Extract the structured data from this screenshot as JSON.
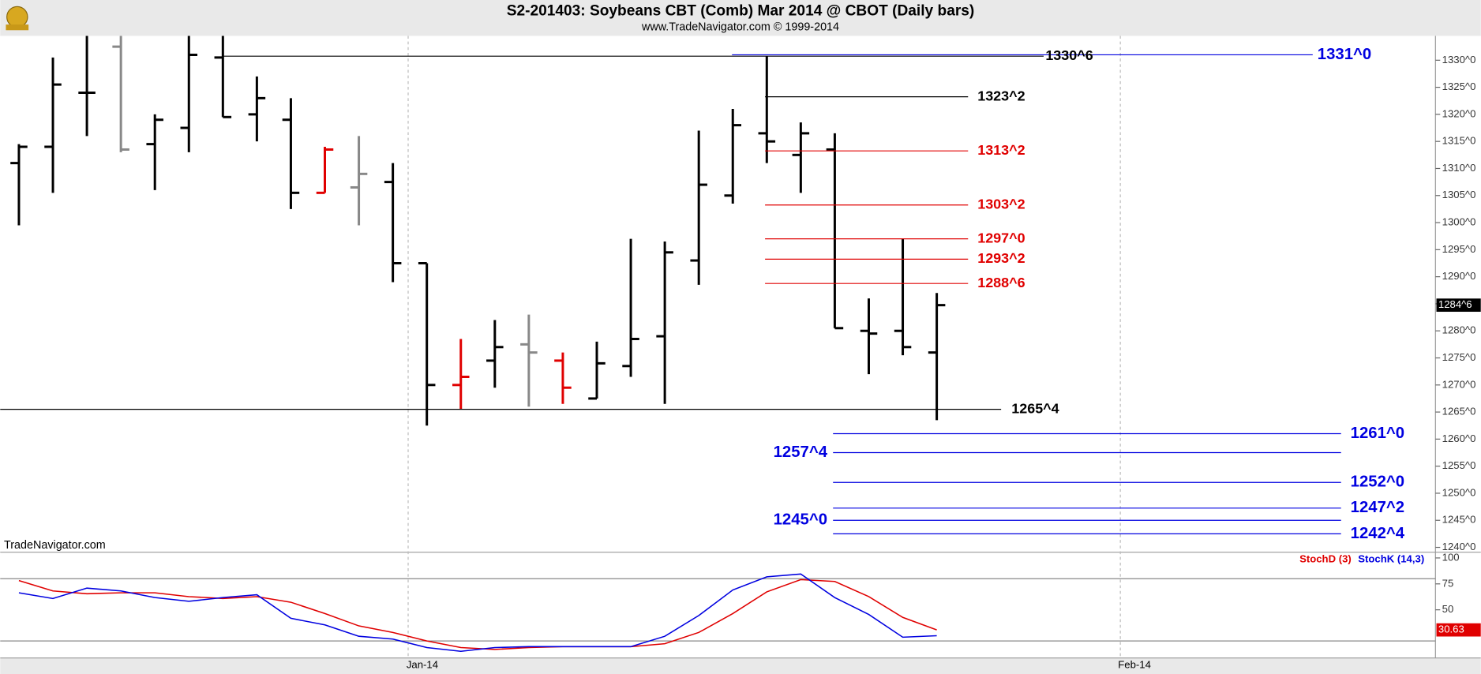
{
  "chart_data": [
    {
      "type": "ohlc",
      "title": "S2-201403:  Soybeans CBT (Comb) Mar 2014 @ CBOT  (Daily bars)",
      "subtitle": "www.TradeNavigator.com © 1999-2014",
      "watermark": "TradeNavigator.com",
      "xlim": [
        -0.55,
        41.67
      ],
      "xticks": [
        {
          "value": 11.45,
          "label": "Jan-14"
        },
        {
          "value": 32.4,
          "label": "Feb-14"
        }
      ],
      "ylim": [
        1239.1,
        1334.5
      ],
      "yticks": [
        {
          "value": 1240,
          "label": "1240^0"
        },
        {
          "value": 1245,
          "label": "1245^0"
        },
        {
          "value": 1250,
          "label": "1250^0"
        },
        {
          "value": 1255,
          "label": "1255^0"
        },
        {
          "value": 1260,
          "label": "1260^0"
        },
        {
          "value": 1265,
          "label": "1265^0"
        },
        {
          "value": 1270,
          "label": "1270^0"
        },
        {
          "value": 1275,
          "label": "1275^0"
        },
        {
          "value": 1280,
          "label": "1280^0"
        },
        {
          "value": 1285,
          "label": "1285^0"
        },
        {
          "value": 1290,
          "label": "1290^0"
        },
        {
          "value": 1295,
          "label": "1295^0"
        },
        {
          "value": 1300,
          "label": "1300^0"
        },
        {
          "value": 1305,
          "label": "1305^0"
        },
        {
          "value": 1310,
          "label": "1310^0"
        },
        {
          "value": 1315,
          "label": "1315^0"
        },
        {
          "value": 1320,
          "label": "1320^0"
        },
        {
          "value": 1325,
          "label": "1325^0"
        },
        {
          "value": 1330,
          "label": "1330^0"
        }
      ],
      "open": [
        1311,
        1314,
        1324,
        1332.5,
        1314.5,
        1317.5,
        1330.5,
        1320,
        1319,
        1305.5,
        1306.5,
        1307.5,
        1292.5,
        1270,
        1274.5,
        1277.5,
        1274.5,
        1267.5,
        1273.5,
        1279,
        1293,
        1305,
        1316.5,
        1312.5,
        1313.5,
        1280,
        1280,
        1276
      ],
      "high": [
        1314.5,
        1330.5,
        1335,
        1335,
        1320,
        1335,
        1335,
        1327,
        1323,
        1314,
        1316,
        1311,
        1292.5,
        1278.5,
        1282,
        1283,
        1276,
        1278,
        1297,
        1296.5,
        1317,
        1321,
        1330.75,
        1318.5,
        1316.5,
        1286,
        1297,
        1287
      ],
      "low": [
        1299.5,
        1305.5,
        1316,
        1313,
        1306,
        1313,
        1319.5,
        1315,
        1302.5,
        1305.5,
        1299.5,
        1289,
        1262.5,
        1265.5,
        1269.5,
        1266,
        1266.5,
        1267.5,
        1271.5,
        1266.5,
        1288.5,
        1303.5,
        1311,
        1305.5,
        1280.5,
        1272,
        1275.5,
        1263.5
      ],
      "close": [
        1314,
        1325.5,
        1324,
        1313.5,
        1319,
        1331,
        1319.5,
        1323,
        1305.5,
        1313.5,
        1309,
        1292.5,
        1270,
        1271.5,
        1277,
        1276,
        1269.5,
        1274,
        1278.5,
        1294.5,
        1307,
        1318,
        1315,
        1316.5,
        1280.5,
        1279.5,
        1277,
        1284.75
      ],
      "colors": [
        "#000",
        "#000",
        "#000",
        "#888",
        "#000",
        "#000",
        "#000",
        "#000",
        "#000",
        "#e00000",
        "#888",
        "#000",
        "#000",
        "#e00000",
        "#000",
        "#888",
        "#e00000",
        "#000",
        "#000",
        "#000",
        "#000",
        "#000",
        "#000",
        "#000",
        "#000",
        "#000",
        "#000",
        "#000"
      ],
      "last": {
        "value": 1284.75,
        "label": "1284^6"
      },
      "levels": [
        {
          "value": 1331,
          "label": "1331^0",
          "color": "#0000e0"
        },
        {
          "value": 1330.75,
          "label": "1330^6",
          "color": "#000"
        },
        {
          "value": 1323.25,
          "label": "1323^2",
          "color": "#000"
        },
        {
          "value": 1313.25,
          "label": "1313^2",
          "color": "#e00000"
        },
        {
          "value": 1303.25,
          "label": "1303^2",
          "color": "#e00000"
        },
        {
          "value": 1297,
          "label": "1297^0",
          "color": "#e00000"
        },
        {
          "value": 1293.25,
          "label": "1293^2",
          "color": "#e00000"
        },
        {
          "value": 1288.75,
          "label": "1288^6",
          "color": "#e00000"
        },
        {
          "value": 1265.5,
          "label": "1265^4",
          "color": "#000"
        },
        {
          "value": 1261,
          "label": "1261^0",
          "color": "#0000e0"
        },
        {
          "value": 1257.5,
          "label": "1257^4",
          "color": "#0000e0"
        },
        {
          "value": 1252,
          "label": "1252^0",
          "color": "#0000e0"
        },
        {
          "value": 1247.25,
          "label": "1247^2",
          "color": "#0000e0"
        },
        {
          "value": 1245,
          "label": "1245^0",
          "color": "#0000e0"
        },
        {
          "value": 1242.5,
          "label": "1242^4",
          "color": "#0000e0"
        }
      ]
    },
    {
      "type": "line",
      "ylim": [
        3.6,
        105.5
      ],
      "yticks": [
        50,
        75,
        100
      ],
      "hlines": [
        80,
        20
      ],
      "series": [
        {
          "name": "StochD (3)",
          "color": "#e00000",
          "values": [
            78.2,
            68.2,
            65.5,
            66.4,
            66.4,
            62.7,
            60.9,
            62.7,
            57.3,
            46.4,
            34.5,
            28.2,
            20,
            13.6,
            11.8,
            13.6,
            14.5,
            14.5,
            14.5,
            17.3,
            28.2,
            46.4,
            67.3,
            79.1,
            77.3,
            62.7,
            42.7,
            30.63
          ]
        },
        {
          "name": "StochK (14,3)",
          "color": "#0000e0",
          "values": [
            66.4,
            60.9,
            70.9,
            68.2,
            61.8,
            58.2,
            61.8,
            64.5,
            41.8,
            35.5,
            24.5,
            21.8,
            13.6,
            10,
            13.6,
            14.5,
            14.5,
            14.5,
            14.5,
            24.5,
            44.5,
            69.1,
            81.8,
            84.5,
            61.8,
            45.5,
            23.6,
            25.01
          ]
        }
      ]
    }
  ]
}
